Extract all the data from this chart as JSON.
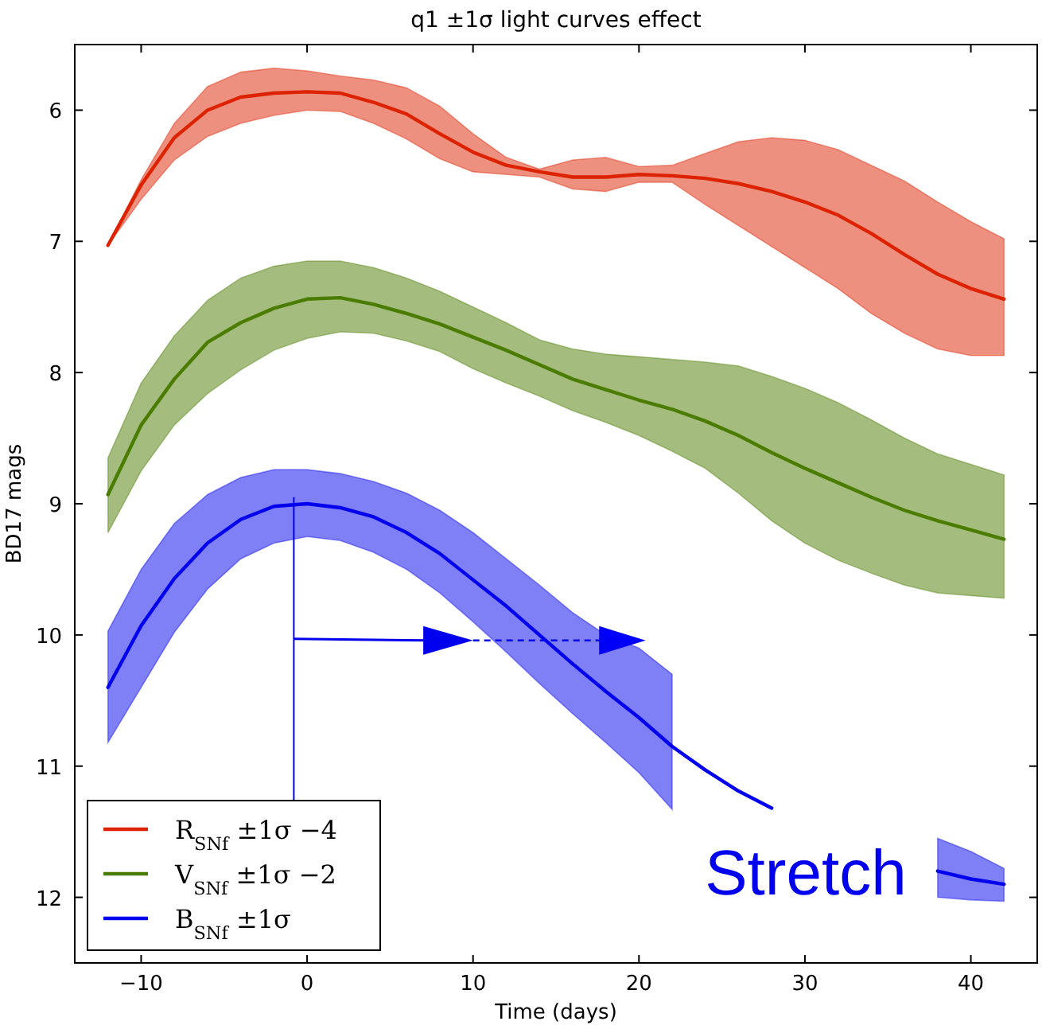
{
  "chart_data": {
    "type": "line",
    "title": "q1 ±1σ light curves effect",
    "xlabel": "Time (days)",
    "ylabel": "BD17 mags",
    "x": [
      -12,
      -10,
      -8,
      -6,
      -4,
      -2,
      0,
      2,
      4,
      6,
      8,
      10,
      12,
      14,
      16,
      18,
      20,
      22,
      24,
      26,
      28,
      30,
      32,
      34,
      36,
      38,
      40,
      42
    ],
    "xlim": [
      -14,
      44
    ],
    "xticks": [
      -10,
      0,
      10,
      20,
      30,
      40
    ],
    "ylim": [
      12.5,
      5.5
    ],
    "yticks": [
      6,
      7,
      8,
      9,
      10,
      11,
      12
    ],
    "grid": false,
    "legend": "bottom left",
    "line_style": "solid",
    "marker": "none",
    "annotations": [
      "Stretch"
    ],
    "series": [
      {
        "name": "R$_{SNf}$ ±1σ −4",
        "color": "#dd2200",
        "values": [
          7.03,
          6.57,
          6.21,
          6.0,
          5.9,
          5.87,
          5.86,
          5.87,
          5.94,
          6.03,
          6.18,
          6.32,
          6.42,
          6.47,
          6.51,
          6.51,
          6.49,
          6.5,
          6.52,
          6.56,
          6.62,
          6.7,
          6.8,
          6.94,
          7.1,
          7.25,
          7.36,
          7.44
        ],
        "lower": [
          7.03,
          6.53,
          6.1,
          5.82,
          5.71,
          5.68,
          5.7,
          5.74,
          5.77,
          5.83,
          5.97,
          6.18,
          6.36,
          6.45,
          6.38,
          6.36,
          6.43,
          6.42,
          6.33,
          6.24,
          6.21,
          6.23,
          6.3,
          6.42,
          6.54,
          6.7,
          6.85,
          6.98
        ],
        "upper": [
          7.03,
          6.68,
          6.38,
          6.2,
          6.1,
          6.04,
          6.0,
          6.01,
          6.1,
          6.22,
          6.37,
          6.47,
          6.49,
          6.51,
          6.6,
          6.62,
          6.55,
          6.55,
          6.72,
          6.88,
          7.04,
          7.2,
          7.36,
          7.55,
          7.7,
          7.82,
          7.87,
          7.87
        ]
      },
      {
        "name": "V$_{SNf}$ ±1σ −2",
        "color": "#4a7c00",
        "values": [
          8.93,
          8.4,
          8.05,
          7.77,
          7.62,
          7.51,
          7.44,
          7.43,
          7.48,
          7.55,
          7.63,
          7.73,
          7.83,
          7.94,
          8.05,
          8.13,
          8.21,
          8.28,
          8.37,
          8.48,
          8.61,
          8.73,
          8.84,
          8.95,
          9.05,
          9.13,
          9.2,
          9.27
        ],
        "lower": [
          8.65,
          8.08,
          7.72,
          7.45,
          7.28,
          7.19,
          7.15,
          7.15,
          7.2,
          7.28,
          7.38,
          7.5,
          7.62,
          7.75,
          7.82,
          7.86,
          7.88,
          7.9,
          7.92,
          7.95,
          8.03,
          8.12,
          8.23,
          8.36,
          8.5,
          8.62,
          8.7,
          8.78
        ],
        "upper": [
          9.22,
          8.75,
          8.4,
          8.16,
          7.98,
          7.83,
          7.74,
          7.69,
          7.7,
          7.76,
          7.84,
          7.97,
          8.08,
          8.18,
          8.29,
          8.38,
          8.48,
          8.6,
          8.73,
          8.92,
          9.13,
          9.3,
          9.43,
          9.53,
          9.62,
          9.68,
          9.7,
          9.72
        ]
      },
      {
        "name": "B$_{SNf}$ ±1σ",
        "color": "#0000ee",
        "values": [
          10.4,
          9.93,
          9.57,
          9.3,
          9.12,
          9.02,
          9.0,
          9.03,
          9.1,
          9.22,
          9.38,
          9.58,
          9.78,
          10.0,
          10.22,
          10.43,
          10.63,
          10.85,
          11.03,
          11.19,
          11.32,
          null,
          null,
          null,
          null,
          11.8,
          11.86,
          11.9
        ],
        "lower": [
          9.97,
          9.5,
          9.15,
          8.93,
          8.8,
          8.74,
          8.74,
          8.77,
          8.83,
          8.92,
          9.05,
          9.22,
          9.42,
          9.62,
          9.83,
          10.0,
          10.1,
          10.3,
          null,
          null,
          null,
          null,
          null,
          null,
          null,
          11.55,
          11.65,
          11.78
        ],
        "upper": [
          10.82,
          10.4,
          9.98,
          9.65,
          9.42,
          9.3,
          9.25,
          9.28,
          9.37,
          9.5,
          9.68,
          9.9,
          10.13,
          10.37,
          10.6,
          10.82,
          11.05,
          11.33,
          null,
          null,
          null,
          null,
          null,
          null,
          null,
          12.0,
          12.02,
          12.03
        ]
      }
    ]
  }
}
